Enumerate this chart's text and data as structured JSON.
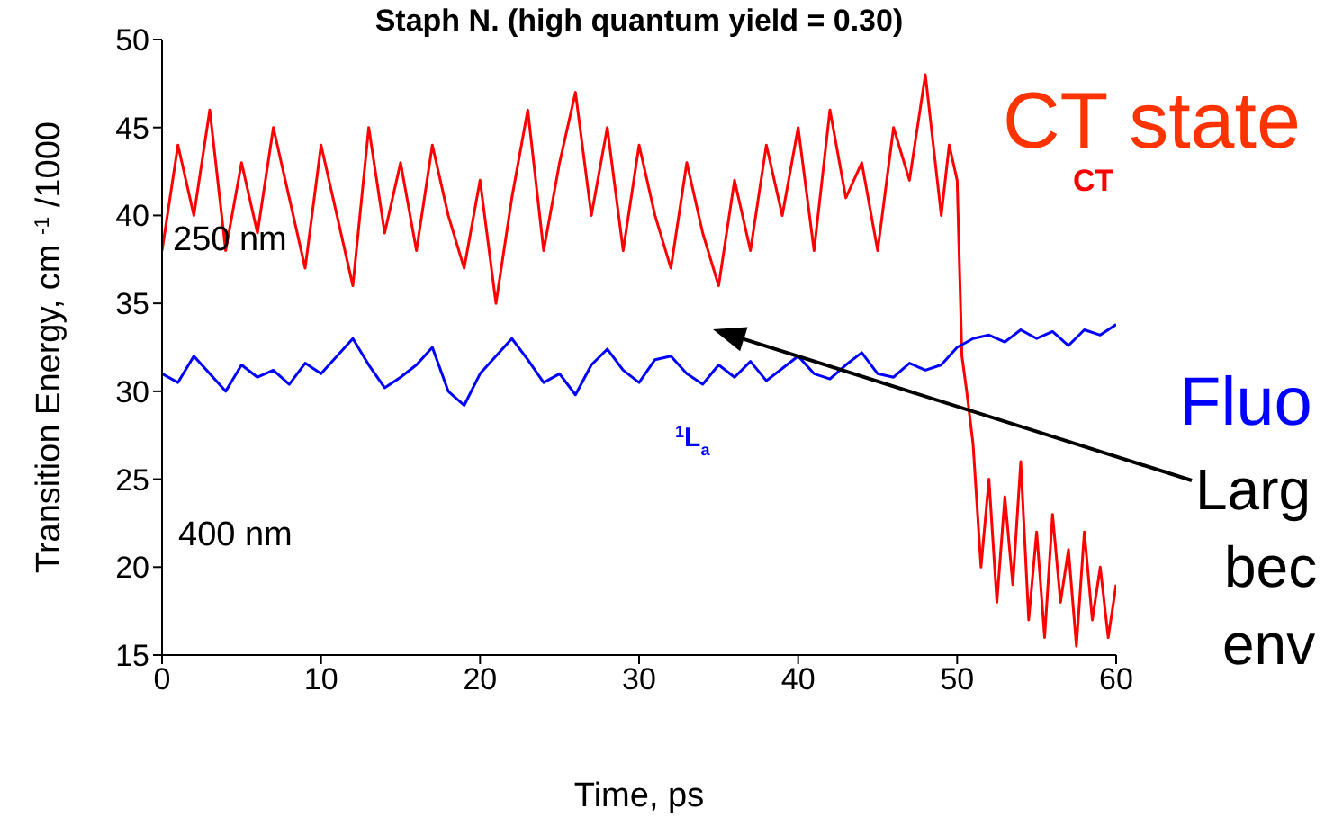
{
  "chart_data": {
    "type": "line",
    "title": "Staph N.  (high quantum yield = 0.30)",
    "xlabel": "Time, ps",
    "ylabel": "Transition Energy, cm $^{-1}$ /1000",
    "xlim": [
      0,
      60
    ],
    "xticks": [
      0,
      10,
      20,
      30,
      40,
      50,
      60
    ],
    "ylim": [
      15,
      50
    ],
    "yticks": [
      15,
      20,
      25,
      30,
      35,
      40,
      45,
      50
    ],
    "grid": false,
    "legend": false,
    "marker": "none",
    "line_style": "solid",
    "series": [
      {
        "name": "CT",
        "color": "#ff0000",
        "x": [
          0,
          1,
          2,
          3,
          4,
          5,
          6,
          7,
          8,
          9,
          10,
          11,
          12,
          13,
          14,
          15,
          16,
          17,
          18,
          19,
          20,
          21,
          22,
          23,
          24,
          25,
          26,
          27,
          28,
          29,
          30,
          31,
          32,
          33,
          34,
          35,
          36,
          37,
          38,
          39,
          40,
          41,
          42,
          43,
          44,
          45,
          46,
          47,
          48,
          49,
          49.5,
          50,
          50.3,
          50.6,
          51,
          51.5,
          52,
          52.5,
          53,
          53.5,
          54,
          54.5,
          55,
          55.5,
          56,
          56.5,
          57,
          57.5,
          58,
          58.5,
          59,
          59.5,
          60
        ],
        "values": [
          38,
          44,
          40,
          46,
          38,
          43,
          39,
          45,
          41,
          37,
          44,
          40,
          36,
          45,
          39,
          43,
          38,
          44,
          40,
          37,
          42,
          35,
          41,
          46,
          38,
          43,
          47,
          40,
          45,
          38,
          44,
          40,
          37,
          43,
          39,
          36,
          42,
          38,
          44,
          40,
          45,
          38,
          46,
          41,
          43,
          38,
          45,
          42,
          48,
          40,
          44,
          42,
          32,
          30,
          27,
          20,
          25,
          18,
          24,
          19,
          26,
          17,
          22,
          16,
          23,
          18,
          21,
          15.5,
          22,
          17,
          20,
          16,
          19
        ]
      },
      {
        "name": "$^{1}$L$_{a}$",
        "color": "#0000ff",
        "x": [
          0,
          1,
          2,
          3,
          4,
          5,
          6,
          7,
          8,
          9,
          10,
          11,
          12,
          13,
          14,
          15,
          16,
          17,
          18,
          19,
          20,
          21,
          22,
          23,
          24,
          25,
          26,
          27,
          28,
          29,
          30,
          31,
          32,
          33,
          34,
          35,
          36,
          37,
          38,
          39,
          40,
          41,
          42,
          43,
          44,
          45,
          46,
          47,
          48,
          49,
          50,
          51,
          52,
          53,
          54,
          55,
          56,
          57,
          58,
          59,
          60
        ],
        "values": [
          31,
          30.5,
          32,
          31,
          30,
          31.5,
          30.8,
          31.2,
          30.4,
          31.6,
          31,
          32,
          33,
          31.5,
          30.2,
          30.8,
          31.5,
          32.5,
          30,
          29.2,
          31,
          32,
          33,
          31.8,
          30.5,
          31,
          29.8,
          31.5,
          32.4,
          31.2,
          30.5,
          31.8,
          32,
          31,
          30.4,
          31.5,
          30.8,
          31.7,
          30.6,
          31.3,
          32,
          31,
          30.7,
          31.5,
          32.2,
          31,
          30.8,
          31.6,
          31.2,
          31.5,
          32.5,
          33,
          33.2,
          32.8,
          33.5,
          33,
          33.4,
          32.6,
          33.5,
          33.2,
          33.8
        ]
      }
    ],
    "annotations": [
      "250 nm",
      "400 nm",
      "CT state",
      "Fluo",
      "Larg",
      "bec",
      "env"
    ]
  }
}
